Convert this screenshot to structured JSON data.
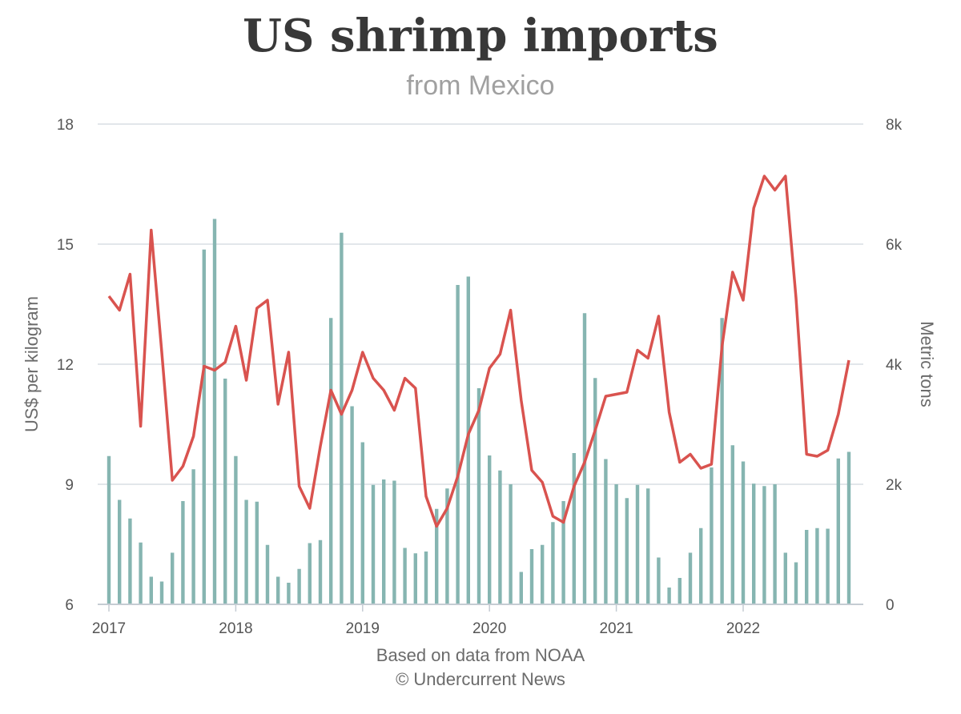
{
  "chart_data": {
    "type": "bar+line",
    "title": "US shrimp imports",
    "subtitle": "from Mexico",
    "footer_lines": [
      "Based on data from NOAA",
      "© Undercurrent News"
    ],
    "y_left": {
      "label": "US$ per kilogram",
      "ticks": [
        "6",
        "9",
        "12",
        "15",
        "18"
      ],
      "lim": [
        6,
        18
      ]
    },
    "y_right": {
      "label": "Metric tons",
      "ticks": [
        "0",
        "2k",
        "4k",
        "6k",
        "8k"
      ],
      "lim": [
        0,
        8000
      ]
    },
    "x_ticks": [
      "2017",
      "2018",
      "2019",
      "2020",
      "2021",
      "2022"
    ],
    "start": "2017-01",
    "grid": true,
    "series": [
      {
        "kind": "bar",
        "axis": "right",
        "color": "#86b5b1",
        "values": [
          2470,
          1740,
          1430,
          1030,
          460,
          380,
          860,
          1720,
          2250,
          5910,
          6420,
          3760,
          2470,
          1740,
          1710,
          990,
          460,
          360,
          590,
          1020,
          1070,
          4770,
          6190,
          3300,
          2700,
          1990,
          2080,
          2060,
          940,
          850,
          880,
          1590,
          1930,
          5320,
          5460,
          3600,
          2480,
          2230,
          2000,
          540,
          920,
          990,
          1370,
          1720,
          2520,
          4850,
          3770,
          2420,
          2000,
          1770,
          1990,
          1930,
          780,
          280,
          440,
          860,
          1270,
          2280,
          4770,
          2650,
          2380,
          2010,
          1970,
          2000,
          860,
          700,
          1240,
          1270,
          1260,
          2430,
          2540
        ]
      },
      {
        "kind": "line",
        "axis": "left",
        "color": "#d9534f",
        "values": [
          13.7,
          13.35,
          14.25,
          10.45,
          15.35,
          12.3,
          9.1,
          9.45,
          10.2,
          11.95,
          11.85,
          12.05,
          12.95,
          11.6,
          13.4,
          13.6,
          11.0,
          12.3,
          8.95,
          8.4,
          9.95,
          11.35,
          10.75,
          11.35,
          12.3,
          11.65,
          11.35,
          10.85,
          11.65,
          11.4,
          8.7,
          7.95,
          8.4,
          9.2,
          10.25,
          10.85,
          11.9,
          12.25,
          13.35,
          11.1,
          9.35,
          9.05,
          8.2,
          8.05,
          8.95,
          9.55,
          10.35,
          11.2,
          11.25,
          11.3,
          12.35,
          12.15,
          13.2,
          10.8,
          9.55,
          9.75,
          9.4,
          9.5,
          12.45,
          14.3,
          13.6,
          15.9,
          16.7,
          16.35,
          16.7,
          13.65,
          9.75,
          9.7,
          9.85,
          10.75,
          12.1
        ]
      }
    ]
  }
}
